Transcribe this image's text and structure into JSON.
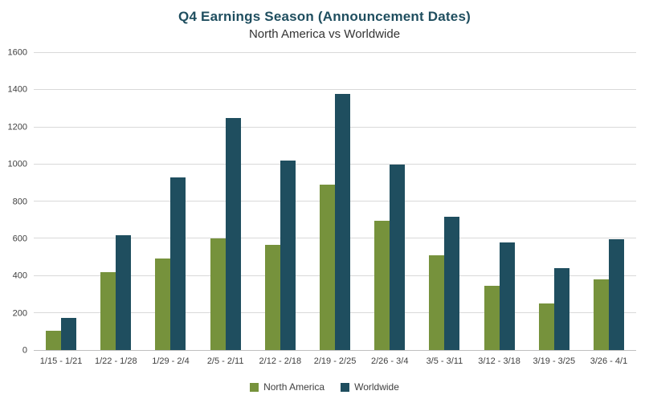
{
  "chart_data": {
    "type": "bar",
    "title": "Q4 Earnings Season (Announcement Dates)",
    "subtitle": "North America vs Worldwide",
    "categories": [
      "1/15 - 1/21",
      "1/22 - 1/28",
      "1/29 - 2/4",
      "2/5 - 2/11",
      "2/12 - 2/18",
      "2/19 - 2/25",
      "2/26 - 3/4",
      "3/5 - 3/11",
      "3/12 - 3/18",
      "3/19 - 3/25",
      "3/26 - 4/1"
    ],
    "series": [
      {
        "name": "North America",
        "color": "#76923C",
        "values": [
          105,
          420,
          495,
          600,
          565,
          890,
          695,
          510,
          345,
          250,
          380
        ]
      },
      {
        "name": "Worldwide",
        "color": "#1F4E5F",
        "values": [
          175,
          620,
          930,
          1250,
          1020,
          1380,
          1000,
          720,
          580,
          440,
          595
        ]
      }
    ],
    "xlabel": "",
    "ylabel": "",
    "ylim": [
      0,
      1600
    ],
    "ytick_step": 200,
    "grid": true,
    "legend_position": "bottom",
    "colors": {
      "title": "#1F4E5F",
      "axis_text": "#404040",
      "gridline": "#D9D9D9",
      "axis_line": "#BFBFBF",
      "background": "#FFFFFF"
    }
  }
}
